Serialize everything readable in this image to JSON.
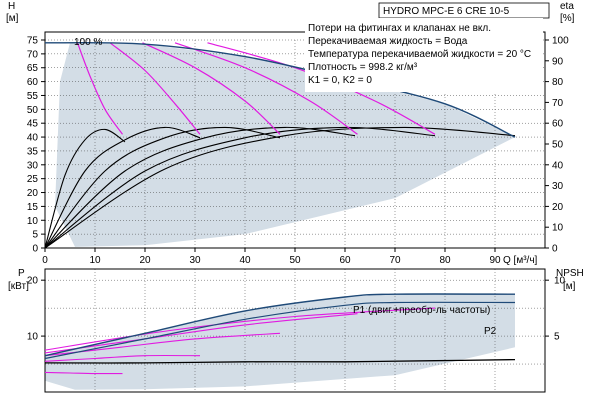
{
  "colors": {
    "envelope": "#d3dde6",
    "head_curve": "#1f4a78",
    "eff_curve": "#000000",
    "speed_curve": "#e11be1",
    "power_curve": "#1f4a78",
    "npsh_curve": "#1f4a78",
    "grid": "#444444",
    "axis": "#000000"
  },
  "title": "HYDRO MPC-E 6 CRE 10-5",
  "notes": [
    "Потери на фитингах и клапанах не вкл.",
    "Перекачиваемая жидкость = Вода",
    "Температура перекачиваемой жидкости = 20 °C",
    "Плотность = 998.2 кг/м³",
    "K1 = 0, K2 = 0"
  ],
  "top_chart": {
    "left_axis_label": "H",
    "left_axis_unit": "[м]",
    "right_axis_label": "eta",
    "right_axis_unit": "[%]",
    "x_axis_label": "Q [м³/ч]",
    "x_ticks": [
      "0",
      "10",
      "20",
      "30",
      "40",
      "50",
      "60",
      "70",
      "80",
      "90"
    ],
    "left_ticks": [
      "0",
      "5",
      "10",
      "15",
      "20",
      "25",
      "30",
      "35",
      "40",
      "45",
      "50",
      "55",
      "60",
      "65",
      "70",
      "75"
    ],
    "right_ticks": [
      "0",
      "10",
      "20",
      "30",
      "40",
      "50",
      "60",
      "70",
      "80",
      "90",
      "100"
    ],
    "speed_label": "100 %"
  },
  "bottom_chart": {
    "left_axis_label": "P",
    "left_axis_unit": "[кВт]",
    "right_axis_label": "NPSH",
    "right_axis_unit": "[м]",
    "left_ticks": [
      "10",
      "20"
    ],
    "right_ticks": [
      "5",
      "10"
    ],
    "p1_label": "P1 (двиг.+преобр-ль частоты)",
    "p2_label": "P2"
  },
  "chart_data": [
    {
      "type": "line",
      "title": "HYDRO MPC-E 6 CRE 10-5",
      "xlabel": "Q [м³/ч]",
      "ylabel": "H [м]",
      "y2label": "eta [%]",
      "xlim": [
        0,
        100
      ],
      "ylim": [
        0,
        75
      ],
      "y2lim": [
        0,
        100
      ],
      "grid": true,
      "series": [
        {
          "name": "100 %",
          "x": [
            0,
            20,
            40,
            60,
            80,
            94
          ],
          "y": [
            74,
            73.5,
            69,
            61,
            52,
            40
          ]
        }
      ],
      "speed_curves_magenta": [
        {
          "x": [
            6.5,
            9,
            12,
            15.5
          ],
          "y": [
            74,
            62,
            50,
            41
          ]
        },
        {
          "x": [
            13,
            20,
            26,
            31
          ],
          "y": [
            74,
            64,
            52,
            41
          ]
        },
        {
          "x": [
            19.5,
            30,
            40,
            47
          ],
          "y": [
            74,
            65,
            53,
            41
          ]
        },
        {
          "x": [
            26,
            40,
            53,
            62.5
          ],
          "y": [
            74,
            65,
            53,
            41
          ]
        },
        {
          "x": [
            32.5,
            50,
            66,
            78
          ],
          "y": [
            74,
            65,
            53,
            41
          ]
        }
      ],
      "efficiency_curves_eta_pct": [
        {
          "x": [
            0,
            4,
            8,
            12,
            16
          ],
          "y": [
            0,
            35,
            52,
            57,
            51
          ]
        },
        {
          "x": [
            0,
            8,
            16,
            24,
            31
          ],
          "y": [
            0,
            37,
            52,
            58,
            53
          ]
        },
        {
          "x": [
            0,
            12,
            24,
            36,
            47
          ],
          "y": [
            0,
            37,
            53,
            58,
            53
          ]
        },
        {
          "x": [
            0,
            16,
            32,
            48,
            62
          ],
          "y": [
            0,
            37,
            53,
            58,
            54
          ]
        },
        {
          "x": [
            0,
            20,
            40,
            60,
            78
          ],
          "y": [
            0,
            37,
            53,
            58,
            54
          ]
        },
        {
          "x": [
            0,
            24,
            48,
            72,
            94
          ],
          "y": [
            0,
            38,
            54,
            58,
            54
          ]
        }
      ]
    },
    {
      "type": "line",
      "xlabel": "Q [м³/ч]",
      "ylabel": "P [кВт]",
      "y2label": "NPSH [м]",
      "xlim": [
        0,
        100
      ],
      "ylim": [
        0,
        22
      ],
      "y2lim": [
        0,
        11
      ],
      "grid": true,
      "series": [
        {
          "name": "P1 (двиг.+преобр-ль частоты)",
          "x": [
            0,
            20,
            40,
            60,
            70,
            94
          ],
          "y": [
            6.5,
            10.5,
            14.5,
            17,
            17.5,
            17.5
          ]
        },
        {
          "name": "P2",
          "x": [
            0,
            20,
            40,
            60,
            70,
            94
          ],
          "y": [
            6,
            9.5,
            13,
            15.5,
            16,
            16
          ]
        }
      ],
      "npsh_curves": [
        {
          "x": [
            0,
            20,
            40,
            60,
            78,
            94
          ],
          "y": [
            2.6,
            2.6,
            2.7,
            2.7,
            2.8,
            2.9
          ]
        }
      ],
      "speed_curves_magenta": [
        {
          "x": [
            0,
            5,
            10,
            15.5
          ],
          "y": [
            3.5,
            3.4,
            3.3,
            3.3
          ]
        },
        {
          "x": [
            0,
            10,
            20,
            31
          ],
          "y": [
            5.5,
            6,
            6.5,
            6.5
          ]
        },
        {
          "x": [
            0,
            15,
            30,
            47
          ],
          "y": [
            6.5,
            8,
            9.5,
            10.5
          ]
        },
        {
          "x": [
            0,
            20,
            40,
            62.5
          ],
          "y": [
            7,
            9.5,
            12,
            14
          ]
        },
        {
          "x": [
            0,
            25,
            50,
            78
          ],
          "y": [
            7.5,
            11,
            13.5,
            15
          ]
        }
      ]
    }
  ]
}
